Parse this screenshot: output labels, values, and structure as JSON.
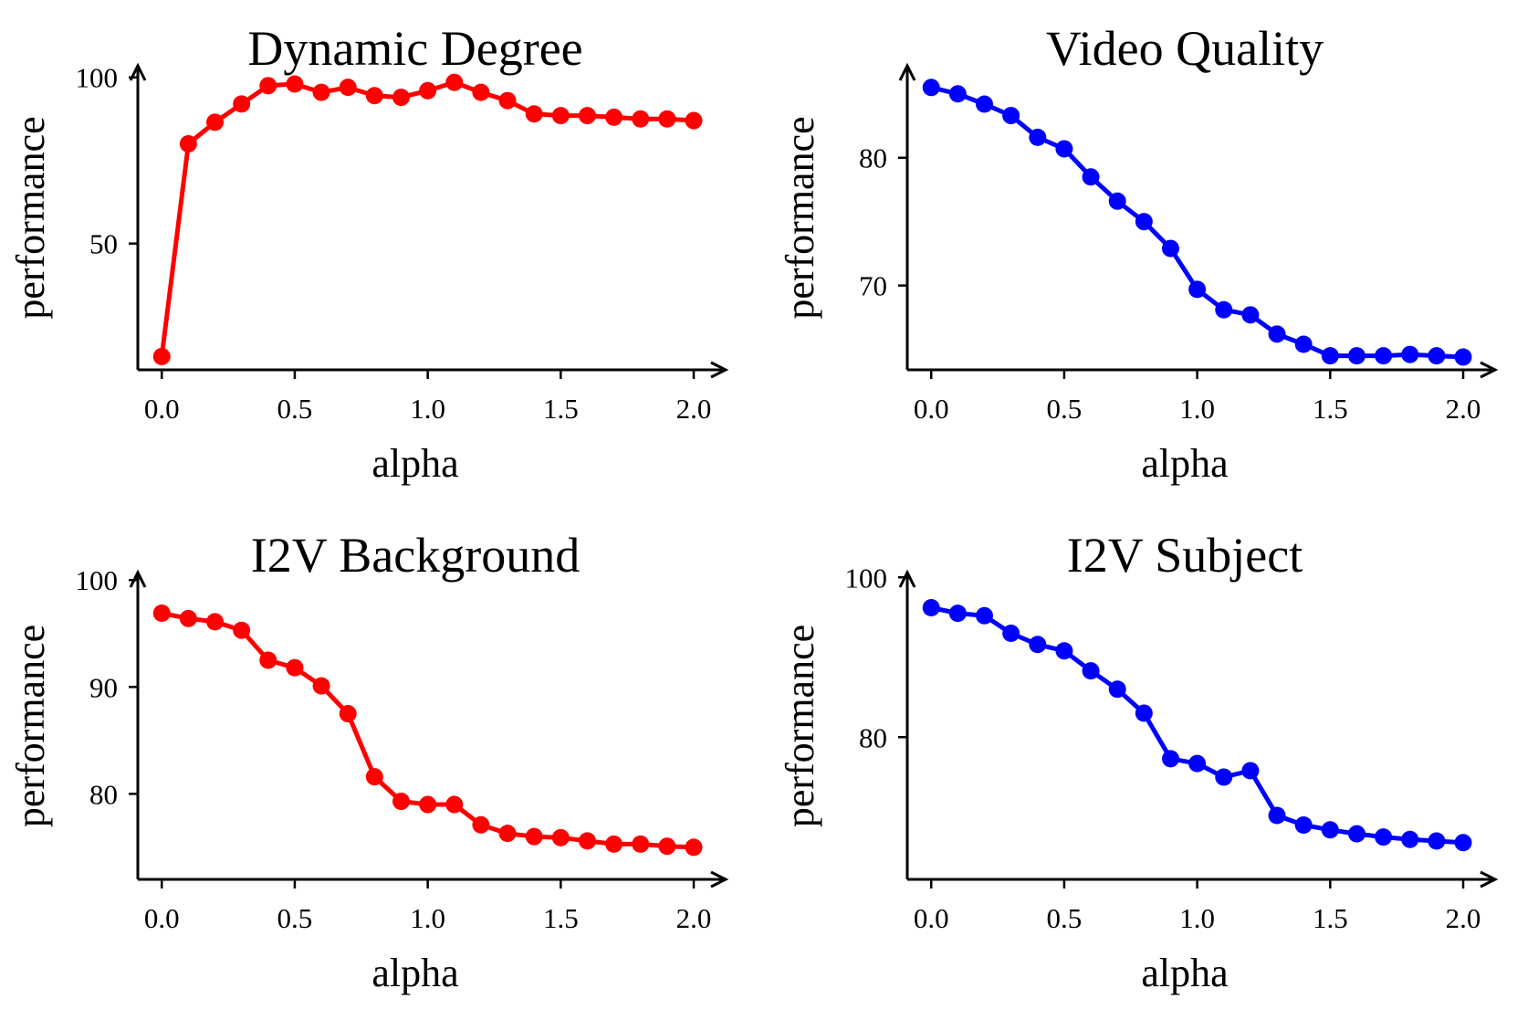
{
  "chart_data": [
    {
      "type": "line",
      "title": "Dynamic Degree",
      "xlabel": "alpha",
      "ylabel": "performance",
      "color": "#ff0000",
      "x": [
        0.0,
        0.1,
        0.2,
        0.3,
        0.4,
        0.5,
        0.6,
        0.7,
        0.8,
        0.9,
        1.0,
        1.1,
        1.2,
        1.3,
        1.4,
        1.5,
        1.6,
        1.7,
        1.8,
        1.9,
        2.0
      ],
      "values": [
        16,
        80,
        86.5,
        92,
        97.5,
        98,
        95.5,
        97,
        94.5,
        94,
        96,
        98.5,
        95.5,
        93,
        89,
        88.5,
        88.5,
        88,
        87.5,
        87.5,
        87
      ],
      "xlim": [
        -0.09,
        2.12
      ],
      "ylim": [
        12,
        103.5
      ],
      "xticks": [
        0.0,
        0.5,
        1.0,
        1.5,
        2.0
      ],
      "xtick_labels": [
        "0.0",
        "0.5",
        "1.0",
        "1.5",
        "2.0"
      ],
      "yticks": [
        50,
        100
      ],
      "ytick_labels": [
        "50",
        "100"
      ]
    },
    {
      "type": "line",
      "title": "Video Quality",
      "xlabel": "alpha",
      "ylabel": "performance",
      "color": "#0000ff",
      "x": [
        0.0,
        0.1,
        0.2,
        0.3,
        0.4,
        0.5,
        0.6,
        0.7,
        0.8,
        0.9,
        1.0,
        1.1,
        1.2,
        1.3,
        1.4,
        1.5,
        1.6,
        1.7,
        1.8,
        1.9,
        2.0
      ],
      "values": [
        85.5,
        85,
        84.2,
        83.3,
        81.6,
        80.7,
        78.5,
        76.6,
        75,
        72.9,
        69.7,
        68.1,
        67.7,
        66.2,
        65.4,
        64.5,
        64.5,
        64.5,
        64.6,
        64.5,
        64.4
      ],
      "xlim": [
        -0.09,
        2.12
      ],
      "ylim": [
        63.4,
        87.2
      ],
      "xticks": [
        0.0,
        0.5,
        1.0,
        1.5,
        2.0
      ],
      "xtick_labels": [
        "0.0",
        "0.5",
        "1.0",
        "1.5",
        "2.0"
      ],
      "yticks": [
        70,
        80
      ],
      "ytick_labels": [
        "70",
        "80"
      ]
    },
    {
      "type": "line",
      "title": "I2V Background",
      "xlabel": "alpha",
      "ylabel": "performance",
      "color": "#ff0000",
      "x": [
        0.0,
        0.1,
        0.2,
        0.3,
        0.4,
        0.5,
        0.6,
        0.7,
        0.8,
        0.9,
        1.0,
        1.1,
        1.2,
        1.3,
        1.4,
        1.5,
        1.6,
        1.7,
        1.8,
        1.9,
        2.0
      ],
      "values": [
        96.9,
        96.4,
        96.1,
        95.3,
        92.5,
        91.8,
        90.1,
        87.5,
        81.6,
        79.3,
        79,
        79,
        77.1,
        76.3,
        76,
        75.9,
        75.6,
        75.3,
        75.3,
        75.1,
        75
      ],
      "xlim": [
        -0.09,
        2.12
      ],
      "ylim": [
        72,
        100.7
      ],
      "xticks": [
        0.0,
        0.5,
        1.0,
        1.5,
        2.0
      ],
      "xtick_labels": [
        "0.0",
        "0.5",
        "1.0",
        "1.5",
        "2.0"
      ],
      "yticks": [
        80,
        90,
        100
      ],
      "ytick_labels": [
        "80",
        "90",
        "100"
      ]
    },
    {
      "type": "line",
      "title": "I2V Subject",
      "xlabel": "alpha",
      "ylabel": "performance",
      "color": "#0000ff",
      "x": [
        0.0,
        0.1,
        0.2,
        0.3,
        0.4,
        0.5,
        0.6,
        0.7,
        0.8,
        0.9,
        1.0,
        1.1,
        1.2,
        1.3,
        1.4,
        1.5,
        1.6,
        1.7,
        1.8,
        1.9,
        2.0
      ],
      "values": [
        96.2,
        95.5,
        95.2,
        93,
        91.6,
        90.8,
        88.3,
        86,
        83,
        77.3,
        76.7,
        75,
        75.8,
        70.2,
        69,
        68.4,
        67.9,
        67.5,
        67.2,
        67,
        66.8
      ],
      "xlim": [
        -0.09,
        2.12
      ],
      "ylim": [
        62.2,
        100.6
      ],
      "xticks": [
        0.0,
        0.5,
        1.0,
        1.5,
        2.0
      ],
      "xtick_labels": [
        "0.0",
        "0.5",
        "1.0",
        "1.5",
        "2.0"
      ],
      "yticks": [
        80,
        100
      ],
      "ytick_labels": [
        "80",
        "100"
      ]
    }
  ]
}
